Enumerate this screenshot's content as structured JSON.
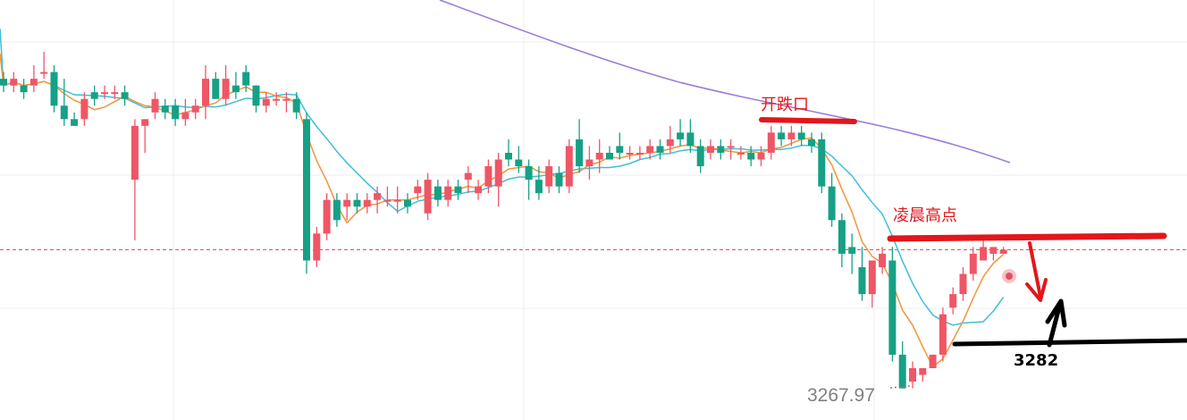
{
  "chart_data": {
    "type": "candlestick",
    "colors": {
      "up": "#ef5666",
      "down": "#16a085",
      "ma_fast": "#f0953c",
      "ma_mid": "#3fbfd6",
      "ma_slow": "#9b7ed6",
      "annotation_red": "#e3161b",
      "annotation_black": "#000000",
      "current_price_line": "#e35060",
      "grid": "#eceef2",
      "low_label": "#808080"
    },
    "ylim": [
      3263.3,
      3325.7
    ],
    "current_price": 3288.6,
    "low_price": 3267.97,
    "low_label": "3267.97",
    "candles": [
      [
        3314,
        3315,
        3312,
        3313
      ],
      [
        3313,
        3315,
        3312,
        3314
      ],
      [
        3313,
        3314,
        3311,
        3312
      ],
      [
        3313,
        3316,
        3312,
        3314
      ],
      [
        3315,
        3318,
        3314,
        3315
      ],
      [
        3315,
        3316,
        3309,
        3310
      ],
      [
        3310,
        3314,
        3307,
        3308
      ],
      [
        3308,
        3309,
        3307,
        3307
      ],
      [
        3308,
        3312,
        3307,
        3311
      ],
      [
        3312,
        3313,
        3310,
        3311
      ],
      [
        3312,
        3313,
        3311,
        3312
      ],
      [
        3312,
        3313,
        3311,
        3312
      ],
      [
        3312,
        3313,
        3310,
        3311
      ],
      [
        3299,
        3308,
        3290,
        3307
      ],
      [
        3307,
        3308,
        3303,
        3308
      ],
      [
        3309,
        3312,
        3308,
        3311
      ],
      [
        3310,
        3311,
        3308,
        3309
      ],
      [
        3310,
        3311,
        3307,
        3308
      ],
      [
        3308,
        3311,
        3307,
        3309
      ],
      [
        3309,
        3311,
        3308,
        3310
      ],
      [
        3310,
        3316,
        3308,
        3314
      ],
      [
        3314,
        3315,
        3311,
        3311
      ],
      [
        3311,
        3316,
        3310,
        3314
      ],
      [
        3313,
        3315,
        3311,
        3312
      ],
      [
        3315,
        3316,
        3312,
        3313
      ],
      [
        3313,
        3313,
        3309,
        3310
      ],
      [
        3310,
        3312,
        3309,
        3311
      ],
      [
        3311,
        3312,
        3310,
        3311
      ],
      [
        3311,
        3312,
        3309,
        3311
      ],
      [
        3311,
        3312,
        3308,
        3309
      ],
      [
        3308,
        3309,
        3285,
        3287
      ],
      [
        3287,
        3292,
        3286,
        3291
      ],
      [
        3291,
        3297,
        3290,
        3296
      ],
      [
        3296,
        3297,
        3292,
        3293
      ],
      [
        3295,
        3297,
        3293,
        3296
      ],
      [
        3296,
        3297,
        3294,
        3295
      ],
      [
        3295,
        3297,
        3294,
        3296
      ],
      [
        3296,
        3298,
        3294,
        3297
      ],
      [
        3296,
        3298,
        3295,
        3296
      ],
      [
        3296,
        3298,
        3294,
        3296
      ],
      [
        3296,
        3297,
        3294,
        3295
      ],
      [
        3297,
        3299,
        3296,
        3298
      ],
      [
        3294,
        3300,
        3293,
        3299
      ],
      [
        3298,
        3299,
        3295,
        3296
      ],
      [
        3296,
        3299,
        3295,
        3298
      ],
      [
        3298,
        3299,
        3296,
        3297
      ],
      [
        3299,
        3301,
        3297,
        3300
      ],
      [
        3297,
        3299,
        3296,
        3298
      ],
      [
        3298,
        3302,
        3297,
        3301
      ],
      [
        3298,
        3303,
        3295,
        3302
      ],
      [
        3303,
        3305,
        3301,
        3302
      ],
      [
        3302,
        3304,
        3300,
        3301
      ],
      [
        3301,
        3302,
        3296,
        3299
      ],
      [
        3299,
        3301,
        3296,
        3297
      ],
      [
        3298,
        3302,
        3297,
        3301
      ],
      [
        3300,
        3301,
        3297,
        3298
      ],
      [
        3298,
        3305,
        3297,
        3304
      ],
      [
        3305,
        3308,
        3300,
        3301
      ],
      [
        3301,
        3304,
        3299,
        3302
      ],
      [
        3302,
        3305,
        3300,
        3303
      ],
      [
        3303,
        3304,
        3302,
        3302
      ],
      [
        3304,
        3306,
        3302,
        3303
      ],
      [
        3303,
        3304,
        3302,
        3303
      ],
      [
        3303,
        3304,
        3302,
        3303
      ],
      [
        3303,
        3305,
        3302,
        3304
      ],
      [
        3304,
        3305,
        3302,
        3303
      ],
      [
        3304,
        3307,
        3303,
        3305
      ],
      [
        3306,
        3308,
        3304,
        3305
      ],
      [
        3306,
        3308,
        3303,
        3304
      ],
      [
        3304,
        3305,
        3300,
        3301
      ],
      [
        3303,
        3305,
        3302,
        3304
      ],
      [
        3304,
        3305,
        3302,
        3303
      ],
      [
        3304,
        3305,
        3302,
        3304
      ],
      [
        3303,
        3304,
        3302,
        3303
      ],
      [
        3303,
        3304,
        3301,
        3302
      ],
      [
        3302,
        3304,
        3301,
        3303
      ],
      [
        3303,
        3307,
        3302,
        3306
      ],
      [
        3306,
        3307,
        3304,
        3305
      ],
      [
        3305,
        3307,
        3304,
        3306
      ],
      [
        3306,
        3307,
        3304,
        3305
      ],
      [
        3305,
        3306,
        3303,
        3304
      ],
      [
        3305,
        3306,
        3297,
        3298
      ],
      [
        3298,
        3300,
        3292,
        3293
      ],
      [
        3293,
        3294,
        3286,
        3288
      ],
      [
        3289,
        3291,
        3285,
        3288
      ],
      [
        3286,
        3289,
        3281,
        3282
      ],
      [
        3282,
        3287,
        3280,
        3287
      ],
      [
        3286,
        3289,
        3285,
        3288
      ],
      [
        3287,
        3289,
        3272,
        3273
      ],
      [
        3273,
        3275,
        3268,
        3268
      ],
      [
        3269,
        3272,
        3268,
        3271
      ],
      [
        3270,
        3271,
        3269,
        3271
      ],
      [
        3271,
        3273,
        3271,
        3273
      ],
      [
        3273,
        3280,
        3272,
        3279
      ],
      [
        3280,
        3283,
        3279,
        3282
      ],
      [
        3282,
        3286,
        3281,
        3285
      ],
      [
        3285,
        3289,
        3284,
        3288
      ],
      [
        3287,
        3290,
        3287,
        3289
      ],
      [
        3288,
        3289,
        3287,
        3289
      ],
      [
        3288,
        3289,
        3288,
        3288.6
      ]
    ],
    "annotations": [
      {
        "text": "开跌口"
      },
      {
        "text": "凌晨高点"
      },
      {
        "text": "3282"
      }
    ]
  }
}
